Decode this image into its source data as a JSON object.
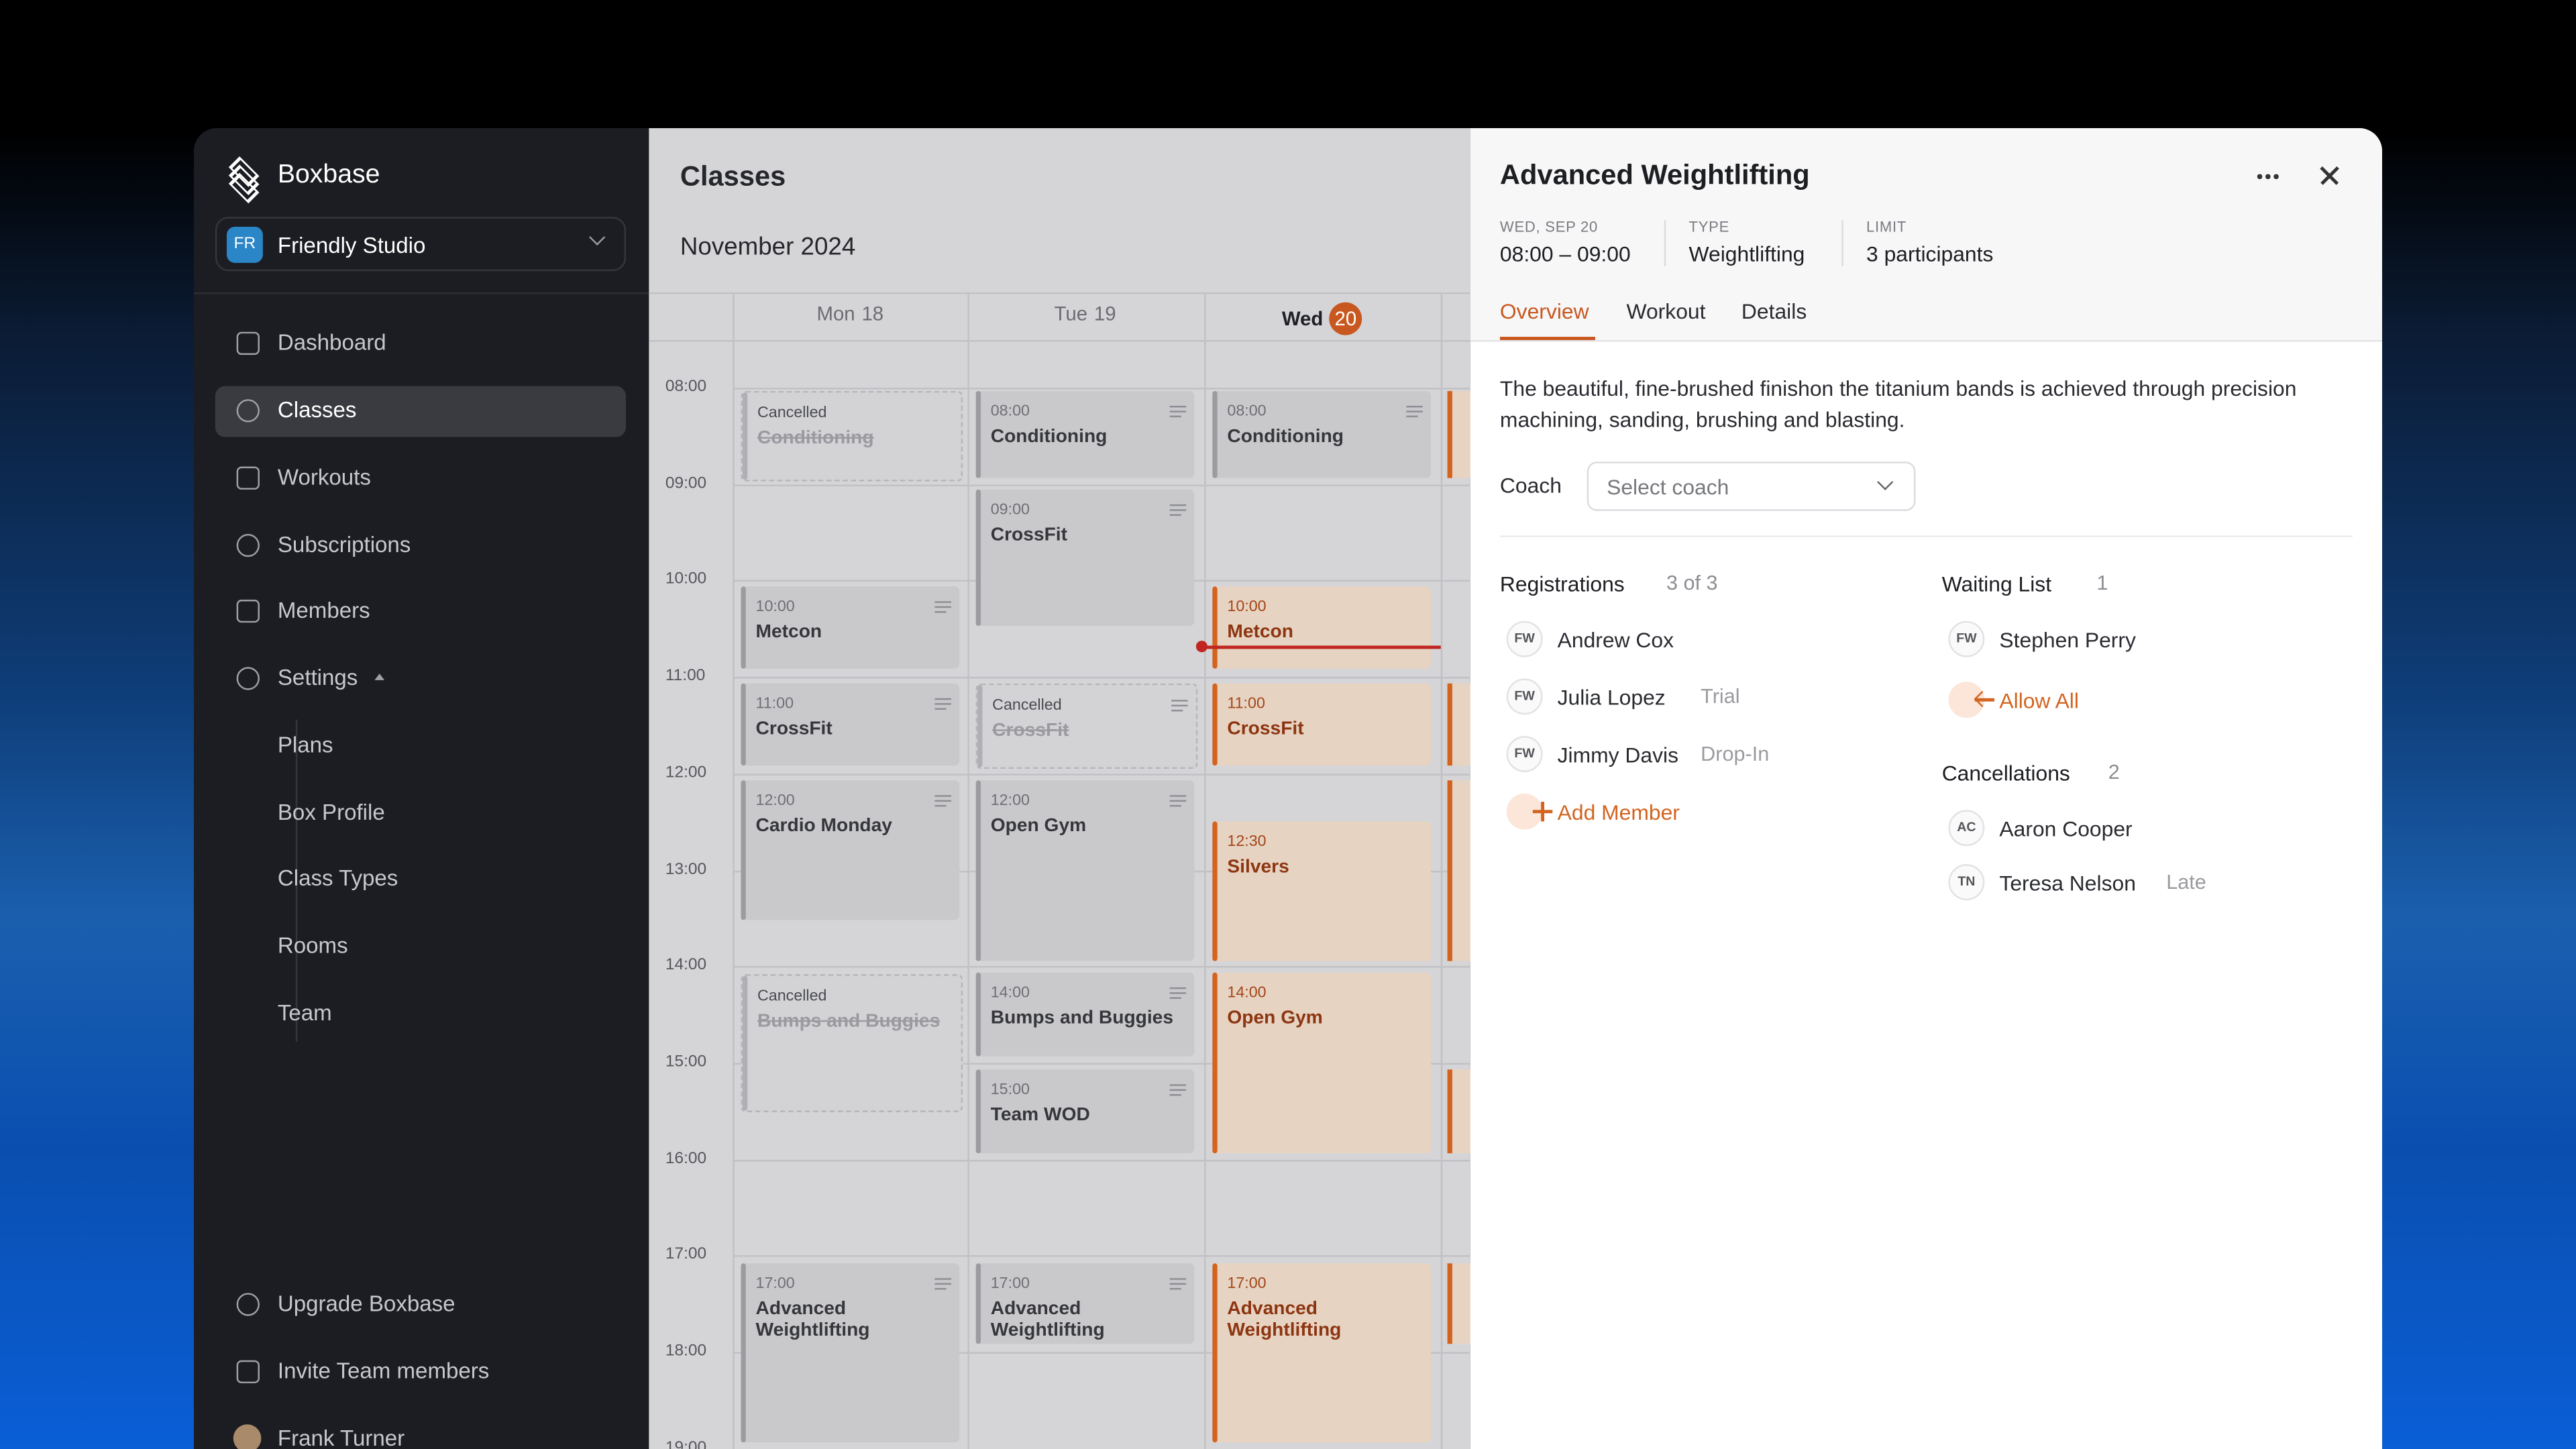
{
  "sidebar": {
    "brand": "Boxbase",
    "studio": {
      "initials": "FR",
      "name": "Friendly Studio"
    },
    "nav": [
      "Dashboard",
      "Classes",
      "Workouts",
      "Subscriptions",
      "Members",
      "Settings"
    ],
    "active": "Classes",
    "settings": [
      "Plans",
      "Box Profile",
      "Class Types",
      "Rooms",
      "Team"
    ],
    "bottom": [
      "Upgrade Boxbase",
      "Invite Team members"
    ],
    "user": "Frank Turner"
  },
  "calendar": {
    "title": "Classes",
    "month": "November 2024",
    "days": [
      {
        "name": "Mon",
        "date": "18"
      },
      {
        "name": "Tue",
        "date": "19"
      },
      {
        "name": "Wed",
        "date": "20"
      }
    ],
    "today": 2,
    "times": [
      "08:00",
      "09:00",
      "10:00",
      "11:00",
      "12:00",
      "13:00",
      "14:00",
      "15:00",
      "16:00",
      "17:00",
      "18:00",
      "19:00"
    ],
    "events": [
      {
        "day": 0,
        "status": "Cancelled",
        "name": "Conditioning"
      },
      {
        "day": 0,
        "time": "10:00",
        "name": "Metcon"
      },
      {
        "day": 0,
        "time": "11:00",
        "name": "CrossFit"
      },
      {
        "day": 0,
        "time": "12:00",
        "name": "Cardio Monday"
      },
      {
        "day": 0,
        "status": "Cancelled",
        "name": "Bumps and Buggies"
      },
      {
        "day": 0,
        "time": "17:00",
        "name": "Advanced Weightlifting"
      },
      {
        "day": 1,
        "time": "08:00",
        "name": "Conditioning"
      },
      {
        "day": 1,
        "time": "09:00",
        "name": "CrossFit"
      },
      {
        "day": 1,
        "status": "Cancelled",
        "name": "CrossFit"
      },
      {
        "day": 1,
        "time": "12:00",
        "name": "Open Gym"
      },
      {
        "day": 1,
        "time": "14:00",
        "name": "Bumps and Buggies"
      },
      {
        "day": 1,
        "time": "15:00",
        "name": "Team WOD"
      },
      {
        "day": 1,
        "time": "17:00",
        "name": "Advanced Weightlifting"
      },
      {
        "day": 2,
        "time": "08:00",
        "name": "Conditioning"
      },
      {
        "day": 2,
        "time": "10:00",
        "name": "Metcon"
      },
      {
        "day": 2,
        "time": "11:00",
        "name": "CrossFit"
      },
      {
        "day": 2,
        "time": "12:30",
        "name": "Silvers"
      },
      {
        "day": 2,
        "time": "14:00",
        "name": "Open Gym"
      },
      {
        "day": 2,
        "time": "17:00",
        "name": "Advanced Weightlifting"
      }
    ]
  },
  "panel": {
    "title": "Advanced Weightlifting",
    "meta": [
      {
        "label": "WED, SEP 20",
        "value": "08:00 – 09:00"
      },
      {
        "label": "TYPE",
        "value": "Weightlifting"
      },
      {
        "label": "LIMIT",
        "value": "3 participants"
      }
    ],
    "tabs": [
      "Overview",
      "Workout",
      "Details"
    ],
    "description": "The beautiful, fine-brushed finishon the titanium bands is achieved through precision machining, sanding, brushing and blasting.",
    "coach_label": "Coach",
    "coach_placeholder": "Select coach",
    "registrations": {
      "title": "Registrations",
      "count": "3 of 3",
      "people": [
        {
          "initials": "FW",
          "name": "Andrew Cox"
        },
        {
          "initials": "FW",
          "name": "Julia Lopez",
          "tag": "Trial"
        },
        {
          "initials": "FW",
          "name": "Jimmy Davis",
          "tag": "Drop-In"
        }
      ],
      "action": "Add Member"
    },
    "waiting": {
      "title": "Waiting List",
      "count": "1",
      "people": [
        {
          "initials": "FW",
          "name": "Stephen Perry"
        }
      ],
      "action": "Allow All"
    },
    "cancellations": {
      "title": "Cancellations",
      "count": "2",
      "people": [
        {
          "initials": "AC",
          "name": "Aaron Cooper"
        },
        {
          "initials": "TN",
          "name": "Teresa Nelson",
          "tag": "Late"
        }
      ]
    }
  }
}
